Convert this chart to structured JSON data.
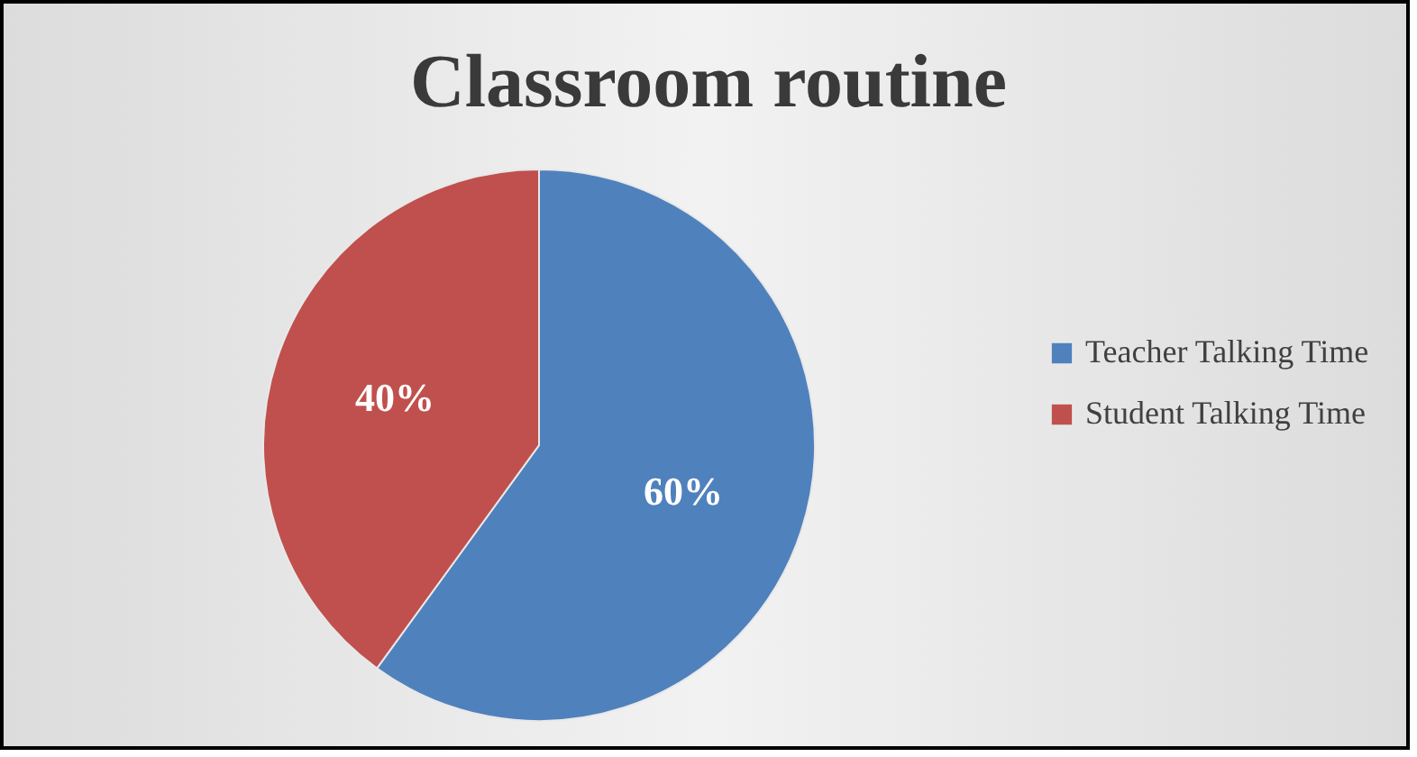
{
  "chart_data": {
    "type": "pie",
    "title": "Classroom routine",
    "categories": [
      "Teacher Talking Time",
      "Student Talking Time"
    ],
    "values": [
      60,
      40
    ],
    "colors": [
      "#4f81bd",
      "#c0504d"
    ],
    "value_labels": [
      "60%",
      "40%"
    ],
    "legend": "right"
  }
}
